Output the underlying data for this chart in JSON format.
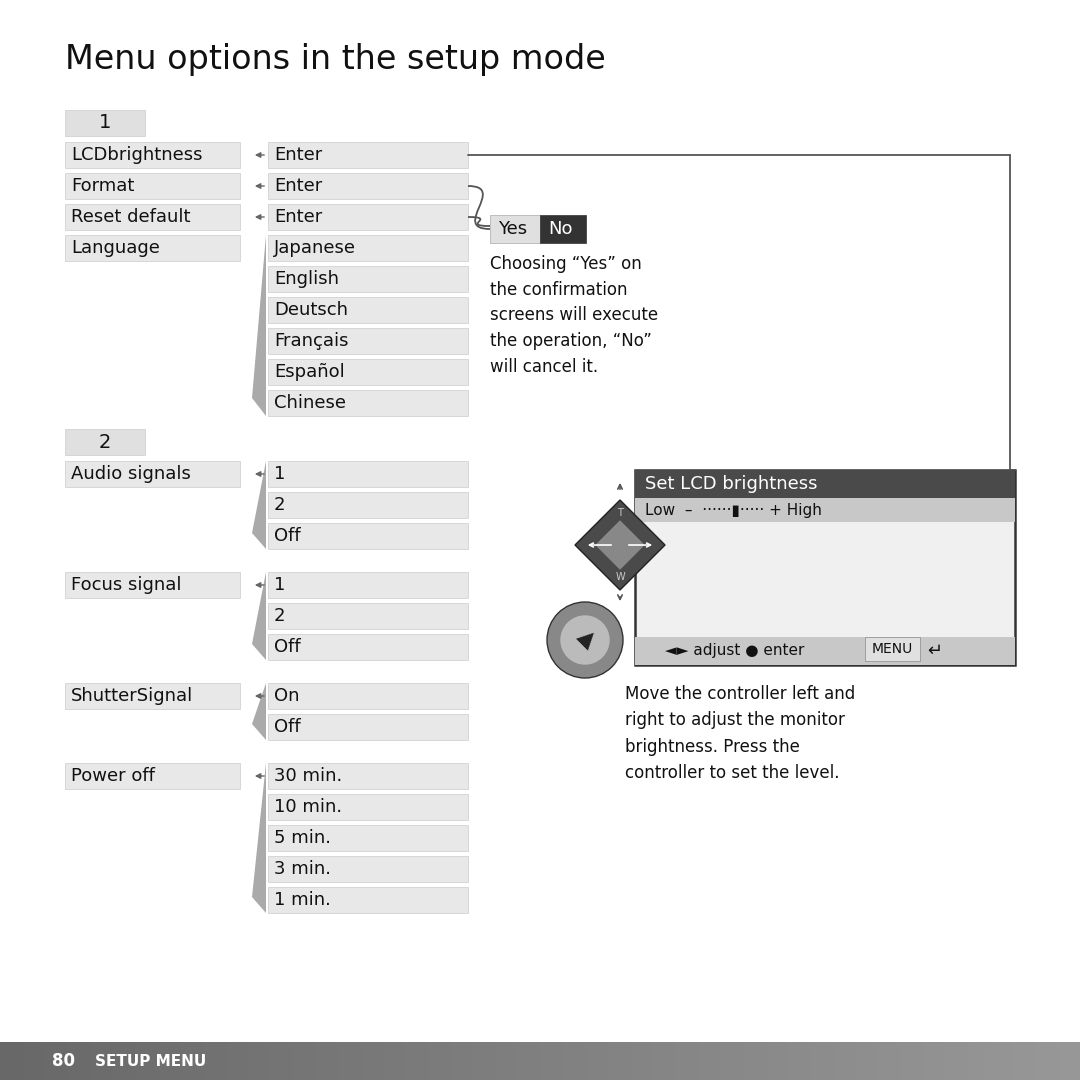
{
  "title": "Menu options in the setup mode",
  "title_fontsize": 24,
  "background_color": "#ffffff",
  "section1_label": "1",
  "section2_label": "2",
  "menu_col2_language": [
    "Japanese",
    "English",
    "Deutsch",
    "Français",
    "Español",
    "Chinese"
  ],
  "menu_col2_audio": [
    "1",
    "2",
    "Off"
  ],
  "menu_col2_focus": [
    "1",
    "2",
    "Off"
  ],
  "menu_col2_shutter": [
    "On",
    "Off"
  ],
  "menu_col2_power": [
    "30 min.",
    "10 min.",
    "5 min.",
    "3 min.",
    "1 min."
  ],
  "confirm_text": "Choosing “Yes” on\nthe confirmation\nscreens will execute\nthe operation, “No”\nwill cancel it.",
  "lcd_title": "Set LCD brightness",
  "lcd_bar_text": "Low  –  ······▮····· + High",
  "move_text": "Move the controller left and\nright to adjust the monitor\nbrightness. Press the\ncontroller to set the level.",
  "box_bg": "#e8e8e8",
  "box_border": "#cccccc",
  "cell_text_color": "#111111",
  "fontsize": 13,
  "footer_number": "80",
  "footer_label": "SETUP MENU"
}
